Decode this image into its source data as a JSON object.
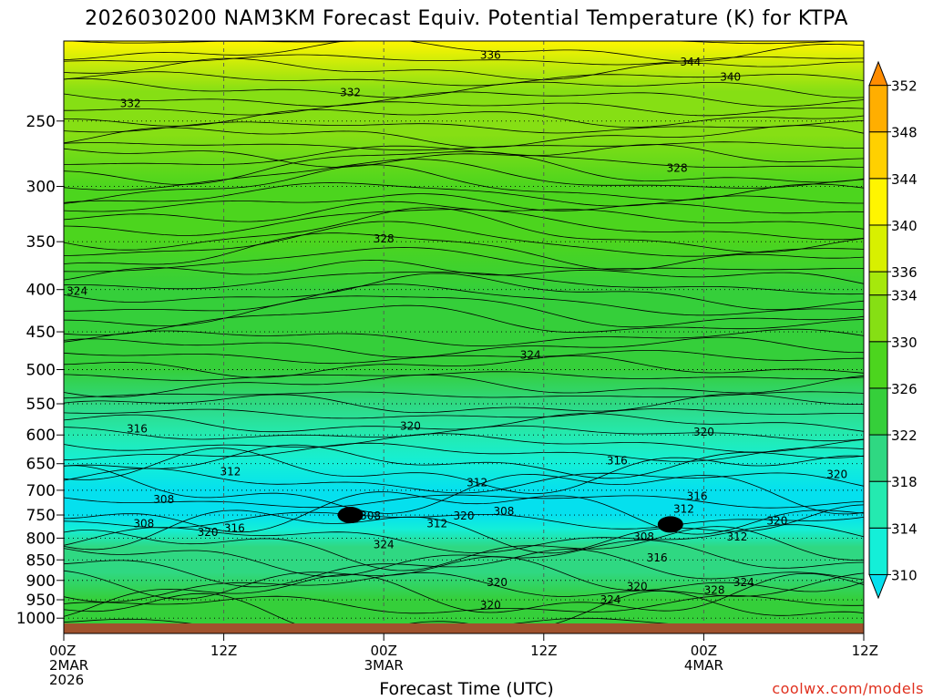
{
  "chart_data": {
    "type": "heatmap",
    "title": "2026030200 NAM3KM Forecast Equiv. Potential Temperature (K) for KTPA",
    "xlabel": "Forecast Time (UTC)",
    "ylabel": "",
    "x_ticks": [
      {
        "hour": 0,
        "lines": [
          "00Z",
          "2MAR",
          "2026"
        ]
      },
      {
        "hour": 12,
        "lines": [
          "12Z"
        ]
      },
      {
        "hour": 24,
        "lines": [
          "00Z",
          "3MAR"
        ]
      },
      {
        "hour": 36,
        "lines": [
          "12Z"
        ]
      },
      {
        "hour": 48,
        "lines": [
          "00Z",
          "4MAR"
        ]
      },
      {
        "hour": 60,
        "lines": [
          "12Z"
        ]
      }
    ],
    "xlim": [
      0,
      60
    ],
    "y_ticks": [
      250,
      300,
      350,
      400,
      450,
      500,
      550,
      600,
      650,
      700,
      750,
      800,
      850,
      900,
      950,
      1000
    ],
    "ylim": [
      1020,
      200
    ],
    "y_scale": "log-pressure",
    "grid": true,
    "colorbar": {
      "levels": [
        310,
        314,
        318,
        322,
        326,
        330,
        334,
        336,
        340,
        344,
        348,
        352
      ],
      "colors": [
        "#05e0ee",
        "#14efd8",
        "#24eab0",
        "#2fd882",
        "#35cf3a",
        "#4cd51e",
        "#86df14",
        "#a6e80c",
        "#d8f000",
        "#fff500",
        "#ffd000",
        "#ffae00",
        "#ff8c00"
      ],
      "range": [
        308,
        354
      ]
    },
    "profile": [
      {
        "p": 200,
        "theta": 341
      },
      {
        "p": 230,
        "theta": 333
      },
      {
        "p": 260,
        "theta": 330
      },
      {
        "p": 300,
        "theta": 329
      },
      {
        "p": 350,
        "theta": 327
      },
      {
        "p": 400,
        "theta": 325
      },
      {
        "p": 450,
        "theta": 324
      },
      {
        "p": 500,
        "theta": 322
      },
      {
        "p": 550,
        "theta": 319
      },
      {
        "p": 600,
        "theta": 316
      },
      {
        "p": 650,
        "theta": 313
      },
      {
        "p": 700,
        "theta": 309
      },
      {
        "p": 750,
        "theta": 307
      },
      {
        "p": 780,
        "theta": 312
      },
      {
        "p": 820,
        "theta": 318
      },
      {
        "p": 880,
        "theta": 321
      },
      {
        "p": 950,
        "theta": 323
      },
      {
        "p": 1000,
        "theta": 323
      }
    ],
    "contour_labels": [
      {
        "t": 32.0,
        "p": 208,
        "text": "336"
      },
      {
        "t": 47.0,
        "p": 212,
        "text": "344"
      },
      {
        "t": 50.0,
        "p": 221,
        "text": "340"
      },
      {
        "t": 5.0,
        "p": 238,
        "text": "332"
      },
      {
        "t": 21.5,
        "p": 231,
        "text": "332"
      },
      {
        "t": 46.0,
        "p": 285,
        "text": "328"
      },
      {
        "t": 24.0,
        "p": 347,
        "text": "328"
      },
      {
        "t": 1.0,
        "p": 402,
        "text": "324"
      },
      {
        "t": 35.0,
        "p": 480,
        "text": "324"
      },
      {
        "t": 5.5,
        "p": 590,
        "text": "316"
      },
      {
        "t": 26.0,
        "p": 585,
        "text": "320"
      },
      {
        "t": 48.0,
        "p": 595,
        "text": "320"
      },
      {
        "t": 41.5,
        "p": 645,
        "text": "316"
      },
      {
        "t": 12.5,
        "p": 665,
        "text": "312"
      },
      {
        "t": 31.0,
        "p": 685,
        "text": "312"
      },
      {
        "t": 58.0,
        "p": 670,
        "text": "320"
      },
      {
        "t": 47.5,
        "p": 712,
        "text": "316"
      },
      {
        "t": 7.5,
        "p": 718,
        "text": "308"
      },
      {
        "t": 23.0,
        "p": 752,
        "text": "308"
      },
      {
        "t": 33.0,
        "p": 742,
        "text": "308"
      },
      {
        "t": 30.0,
        "p": 752,
        "text": "320"
      },
      {
        "t": 46.5,
        "p": 738,
        "text": "312"
      },
      {
        "t": 6.0,
        "p": 768,
        "text": "308"
      },
      {
        "t": 28.0,
        "p": 768,
        "text": "312"
      },
      {
        "t": 12.8,
        "p": 778,
        "text": "316"
      },
      {
        "t": 10.8,
        "p": 787,
        "text": "320"
      },
      {
        "t": 43.5,
        "p": 797,
        "text": "308"
      },
      {
        "t": 53.5,
        "p": 762,
        "text": "320"
      },
      {
        "t": 50.5,
        "p": 797,
        "text": "312"
      },
      {
        "t": 24.0,
        "p": 815,
        "text": "324"
      },
      {
        "t": 44.5,
        "p": 845,
        "text": "316"
      },
      {
        "t": 32.5,
        "p": 905,
        "text": "320"
      },
      {
        "t": 43.0,
        "p": 915,
        "text": "320"
      },
      {
        "t": 51.0,
        "p": 905,
        "text": "324"
      },
      {
        "t": 48.8,
        "p": 925,
        "text": "328"
      },
      {
        "t": 41.0,
        "p": 950,
        "text": "324"
      },
      {
        "t": 32.0,
        "p": 965,
        "text": "320"
      }
    ],
    "dark_blobs": [
      {
        "t": 21.5,
        "p": 750
      },
      {
        "t": 45.5,
        "p": 770
      }
    ]
  },
  "credit": "coolwx.com/models"
}
